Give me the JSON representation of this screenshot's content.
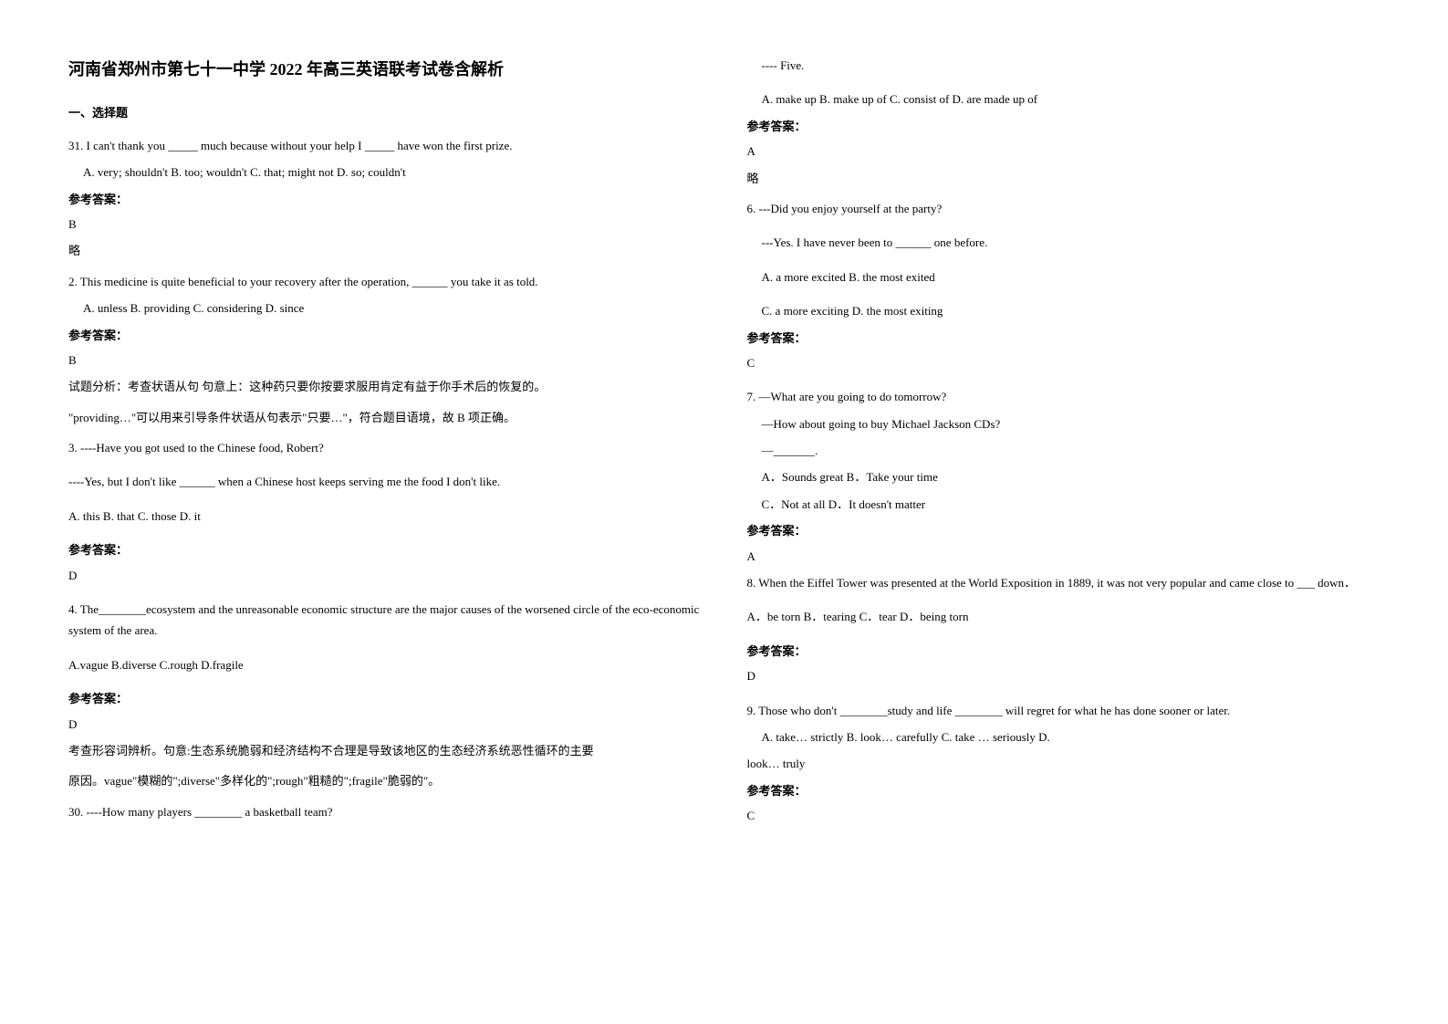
{
  "title": "河南省郑州市第七十一中学 2022 年高三英语联考试卷含解析",
  "section1_header": "一、选择题",
  "q31": "31. I can't thank you _____ much because without your help I _____ have won the first prize.",
  "q31_options": "A. very; shouldn't   B. too; wouldn't   C. that; might not   D. so; couldn't",
  "answer_label": "参考答案：",
  "q31_answer": "B",
  "q31_note": "略",
  "q2": "2. This medicine is quite beneficial to your recovery after the operation, ______ you take it as told.",
  "q2_options": "A. unless      B. providing      C. considering    D. since",
  "q2_answer": "B",
  "q2_exp1": "试题分析：考查状语从句    句意上：这种药只要你按要求服用肯定有益于你手术后的恢复的。",
  "q2_exp2": "\"providing…\"可以用来引导条件状语从句表示\"只要…\"，符合题目语境，故 B 项正确。",
  "q3": "3. ----Have you got used to the Chinese food, Robert?",
  "q3b": "----Yes, but I don't like ______ when a Chinese host keeps serving me the food I don't like.",
  "q3_options": "A. this        B. that        C. those           D. it",
  "q3_answer": "D",
  "q4": "4. The________ecosystem and the unreasonable economic structure are the major causes of the worsened circle of the eco-economic system of the area.",
  "q4_options": "A.vague B.diverse       C.rough D.fragile",
  "q4_answer": "D",
  "q4_exp1": "考查形容词辨析。句意:生态系统脆弱和经济结构不合理是导致该地区的生态经济系统恶性循环的主要",
  "q4_exp2": "原因。vague\"模糊的\";diverse\"多样化的\";rough\"粗糙的\";fragile\"脆弱的\"。",
  "q30": "30. ----How many players ________ a basketball team?",
  "q30b": "---- Five.",
  "q30_options": "A. make up             B. make up of      C. consist of                D. are made up of",
  "q30_answer": "A",
  "q30_note": "略",
  "q6": "6. ---Did you enjoy yourself at the party?",
  "q6b": "---Yes. I have never been to ______ one before.",
  "q6_opt1": "A. a more excited        B. the most exited",
  "q6_opt2": "C. a more exciting      D. the most exiting",
  "q6_answer": "C",
  "q7": "7. —What are you going to do tomorrow?",
  "q7b": "—How about going to buy Michael Jackson CDs?",
  "q7c": "—_______.",
  "q7_opt1": "A．Sounds great                      B．Take your time",
  "q7_opt2": "C．Not at all       D．It doesn't matter",
  "q7_answer": "A",
  "q8": "8. When the Eiffel Tower was presented at the World Exposition in 1889, it was not very popular and came close to ___ down．",
  "q8_options": "A．be torn                 B．tearing            C．tear                 D．being torn",
  "q8_answer": "D",
  "q9": "9. Those who don't ________study and life ________ will regret for what he has done sooner or later.",
  "q9_opt1": "A. take… strictly              B. look… carefully                             C. take … seriously                 D.",
  "q9_opt2": "look… truly",
  "q9_answer": "C"
}
